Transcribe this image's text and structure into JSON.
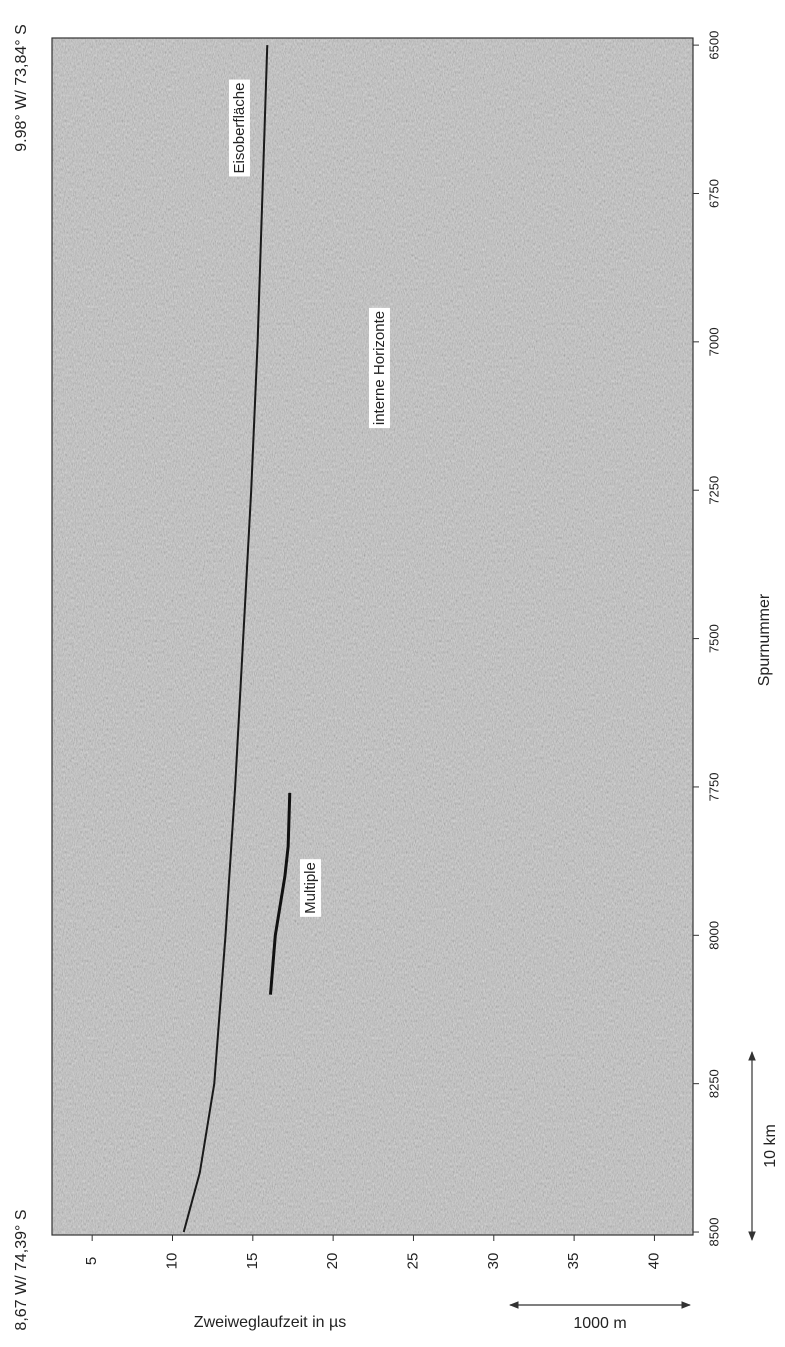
{
  "chart_data": {
    "type": "radargram",
    "xlabel": "Zweiweglaufzeit in µs",
    "ylabel": "Spurnummer",
    "xlim": [
      2.5,
      42.4
    ],
    "xticks": [
      5,
      10,
      15,
      20,
      25,
      30,
      35,
      40
    ],
    "ylim": [
      6488,
      8505
    ],
    "yticks": [
      6500,
      6750,
      7000,
      7250,
      7500,
      7750,
      8000,
      8250,
      8500
    ],
    "corner_top": "9.98° W/ 73,84° S",
    "corner_bottom": "8,67 W/ 74,39° S",
    "series": [
      {
        "name": "Eisoberfläche",
        "color": "#1a1a1a",
        "x": [
          6500,
          6750,
          7000,
          7250,
          7500,
          7750,
          8000,
          8250,
          8400,
          8500
        ],
        "values": [
          15.9,
          15.6,
          15.3,
          14.9,
          14.4,
          13.9,
          13.3,
          12.6,
          11.7,
          10.7
        ]
      },
      {
        "name": "Multiple",
        "color": "#111111",
        "x": [
          7760,
          7850,
          7900,
          8000,
          8100
        ],
        "values": [
          17.3,
          17.2,
          17.0,
          16.4,
          16.1
        ]
      }
    ],
    "annotation": "interne Horizonte",
    "scale_time": "1000 m",
    "scale_trace": "10 km"
  }
}
